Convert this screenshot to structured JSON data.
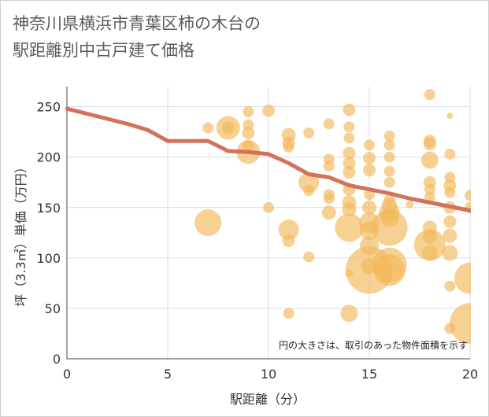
{
  "title": {
    "line1": "神奈川県横浜市青葉区柿の木台の",
    "line2": "駅距離別中古戸建て価格"
  },
  "colors": {
    "bubble": "#f2b85a",
    "line": "#d4715a",
    "grid": "#d6dee6",
    "background": "#ffffff"
  },
  "chart_data": {
    "type": "scatter",
    "xlabel": "駅距離（分）",
    "ylabel": "坪（3.3㎡）単価（万円）",
    "xlim": [
      0,
      20
    ],
    "ylim": [
      0,
      270
    ],
    "xticks": [
      "0",
      "5",
      "10",
      "15",
      "20"
    ],
    "yticks": [
      "0",
      "50",
      "100",
      "150",
      "200",
      "250"
    ],
    "annotation": "円の大きさは、取引のあった物件面積を示す",
    "grid": true,
    "trend_line": {
      "x": [
        0,
        1,
        2,
        3,
        4,
        5,
        6,
        7,
        8,
        9,
        10,
        11,
        12,
        13,
        14,
        15,
        16,
        17,
        18,
        19,
        20
      ],
      "y": [
        248,
        243,
        238,
        233,
        227,
        216,
        216,
        216,
        206,
        205,
        203,
        194,
        183,
        180,
        172,
        168,
        164,
        159,
        155,
        151,
        147
      ]
    },
    "points": [
      {
        "x": 7,
        "y": 229,
        "r": 7
      },
      {
        "x": 7,
        "y": 135,
        "r": 17
      },
      {
        "x": 8,
        "y": 229,
        "r": 15
      },
      {
        "x": 8,
        "y": 229,
        "r": 8
      },
      {
        "x": 9,
        "y": 245,
        "r": 7
      },
      {
        "x": 9,
        "y": 232,
        "r": 7
      },
      {
        "x": 9,
        "y": 224,
        "r": 8
      },
      {
        "x": 9,
        "y": 212,
        "r": 7
      },
      {
        "x": 9,
        "y": 205,
        "r": 15
      },
      {
        "x": 10,
        "y": 246,
        "r": 8
      },
      {
        "x": 10,
        "y": 150,
        "r": 7
      },
      {
        "x": 10,
        "y": 109,
        "r": 1
      },
      {
        "x": 11,
        "y": 222,
        "r": 9
      },
      {
        "x": 11,
        "y": 214,
        "r": 8
      },
      {
        "x": 11,
        "y": 210,
        "r": 7
      },
      {
        "x": 11,
        "y": 128,
        "r": 13
      },
      {
        "x": 11,
        "y": 117,
        "r": 8
      },
      {
        "x": 11,
        "y": 45,
        "r": 7
      },
      {
        "x": 12,
        "y": 224,
        "r": 7
      },
      {
        "x": 12,
        "y": 175,
        "r": 13
      },
      {
        "x": 12,
        "y": 167,
        "r": 7
      },
      {
        "x": 12,
        "y": 101,
        "r": 7
      },
      {
        "x": 13,
        "y": 233,
        "r": 7
      },
      {
        "x": 13,
        "y": 198,
        "r": 7
      },
      {
        "x": 13,
        "y": 191,
        "r": 7
      },
      {
        "x": 13,
        "y": 163,
        "r": 7
      },
      {
        "x": 13,
        "y": 159,
        "r": 7
      },
      {
        "x": 13,
        "y": 145,
        "r": 9
      },
      {
        "x": 14,
        "y": 247,
        "r": 8
      },
      {
        "x": 14,
        "y": 230,
        "r": 7
      },
      {
        "x": 14,
        "y": 219,
        "r": 7
      },
      {
        "x": 14,
        "y": 204,
        "r": 8
      },
      {
        "x": 14,
        "y": 194,
        "r": 8
      },
      {
        "x": 14,
        "y": 185,
        "r": 8
      },
      {
        "x": 14,
        "y": 168,
        "r": 8
      },
      {
        "x": 14,
        "y": 155,
        "r": 9
      },
      {
        "x": 14,
        "y": 148,
        "r": 9
      },
      {
        "x": 14,
        "y": 130,
        "r": 18
      },
      {
        "x": 14,
        "y": 85,
        "r": 5
      },
      {
        "x": 14,
        "y": 45,
        "r": 11
      },
      {
        "x": 15,
        "y": 212,
        "r": 7
      },
      {
        "x": 15,
        "y": 199,
        "r": 8
      },
      {
        "x": 15,
        "y": 187,
        "r": 8
      },
      {
        "x": 15,
        "y": 163,
        "r": 7
      },
      {
        "x": 15,
        "y": 150,
        "r": 9
      },
      {
        "x": 15,
        "y": 135,
        "r": 13
      },
      {
        "x": 15,
        "y": 127,
        "r": 12
      },
      {
        "x": 15,
        "y": 112,
        "r": 12
      },
      {
        "x": 15,
        "y": 92,
        "r": 10
      },
      {
        "x": 15,
        "y": 88,
        "r": 30
      },
      {
        "x": 16,
        "y": 221,
        "r": 7
      },
      {
        "x": 16,
        "y": 212,
        "r": 7
      },
      {
        "x": 16,
        "y": 200,
        "r": 7
      },
      {
        "x": 16,
        "y": 186,
        "r": 7
      },
      {
        "x": 16,
        "y": 175,
        "r": 7
      },
      {
        "x": 16,
        "y": 158,
        "r": 7
      },
      {
        "x": 16,
        "y": 152,
        "r": 10
      },
      {
        "x": 16,
        "y": 145,
        "r": 13
      },
      {
        "x": 16,
        "y": 140,
        "r": 12
      },
      {
        "x": 16,
        "y": 130,
        "r": 23
      },
      {
        "x": 16,
        "y": 93,
        "r": 22
      },
      {
        "x": 16,
        "y": 88,
        "r": 20
      },
      {
        "x": 17,
        "y": 153,
        "r": 5
      },
      {
        "x": 18,
        "y": 262,
        "r": 7
      },
      {
        "x": 18,
        "y": 216,
        "r": 8
      },
      {
        "x": 18,
        "y": 213,
        "r": 8
      },
      {
        "x": 18,
        "y": 197,
        "r": 11
      },
      {
        "x": 18,
        "y": 175,
        "r": 8
      },
      {
        "x": 18,
        "y": 168,
        "r": 7
      },
      {
        "x": 18,
        "y": 160,
        "r": 7
      },
      {
        "x": 18,
        "y": 130,
        "r": 9
      },
      {
        "x": 18,
        "y": 121,
        "r": 9
      },
      {
        "x": 18,
        "y": 113,
        "r": 20
      },
      {
        "x": 18,
        "y": 105,
        "r": 10
      },
      {
        "x": 19,
        "y": 241,
        "r": 4
      },
      {
        "x": 19,
        "y": 203,
        "r": 7
      },
      {
        "x": 19,
        "y": 180,
        "r": 7
      },
      {
        "x": 19,
        "y": 172,
        "r": 8
      },
      {
        "x": 19,
        "y": 165,
        "r": 7
      },
      {
        "x": 19,
        "y": 150,
        "r": 8
      },
      {
        "x": 19,
        "y": 136,
        "r": 8
      },
      {
        "x": 19,
        "y": 122,
        "r": 9
      },
      {
        "x": 19,
        "y": 105,
        "r": 10
      },
      {
        "x": 19,
        "y": 72,
        "r": 7
      },
      {
        "x": 19,
        "y": 30,
        "r": 7
      },
      {
        "x": 20,
        "y": 162,
        "r": 7
      },
      {
        "x": 20,
        "y": 150,
        "r": 7
      },
      {
        "x": 20,
        "y": 80,
        "r": 20
      },
      {
        "x": 20,
        "y": 35,
        "r": 26
      }
    ]
  }
}
